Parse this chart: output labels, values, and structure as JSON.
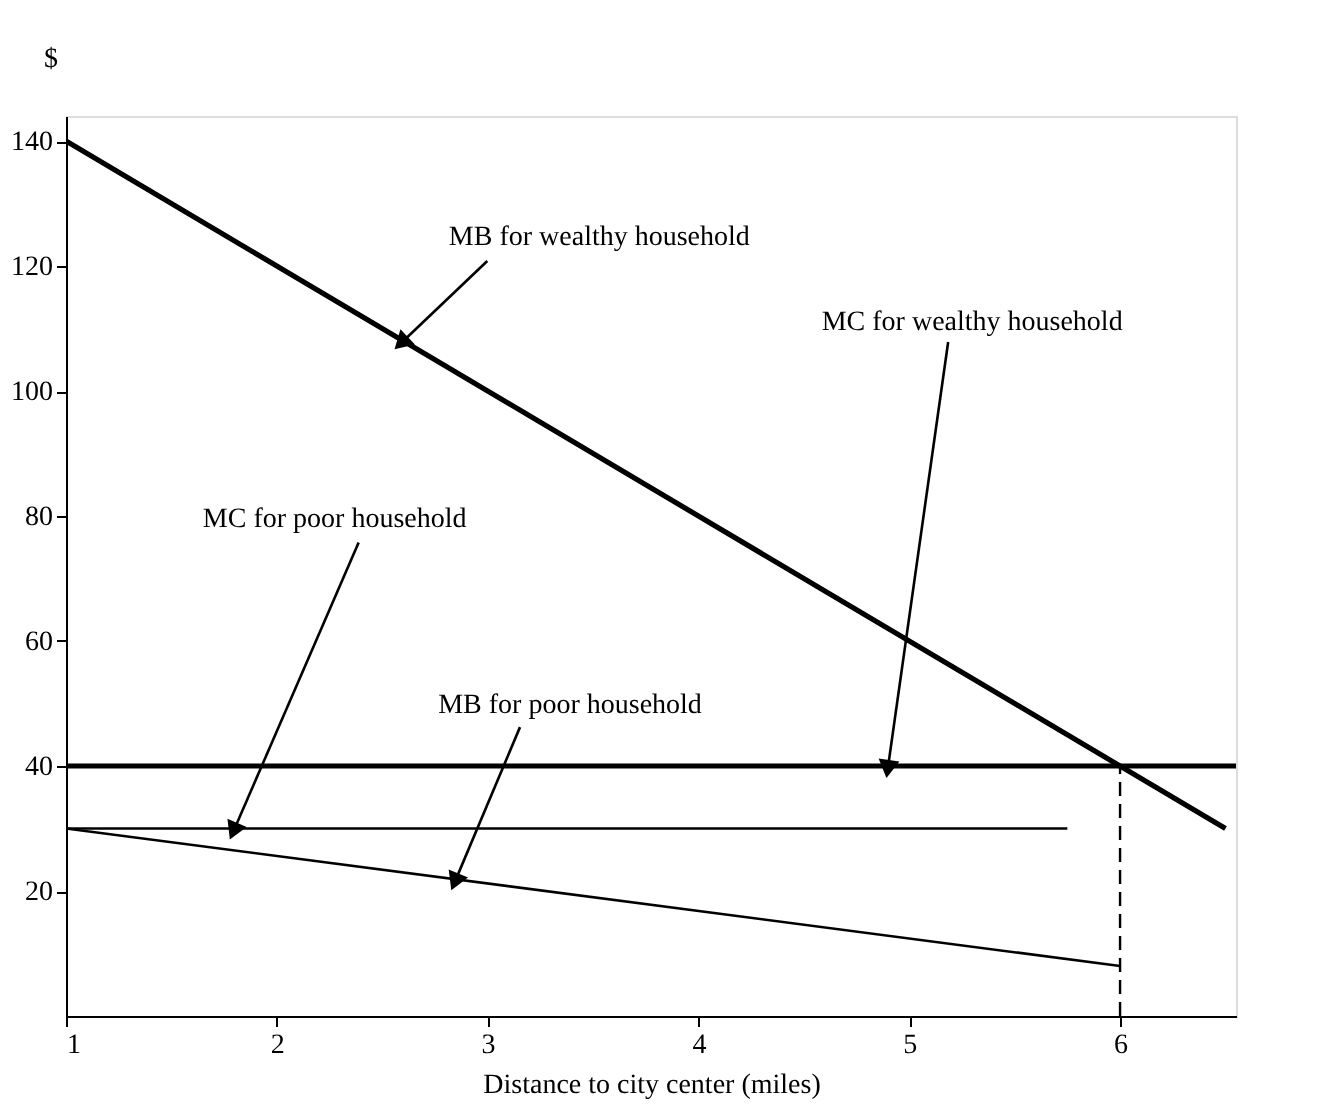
{
  "chart_data": {
    "type": "line",
    "ylabel": "$",
    "xlabel": "Distance to city center (miles)",
    "xlim": [
      1,
      6.55
    ],
    "ylim": [
      0,
      144
    ],
    "xticks": [
      1,
      2,
      3,
      4,
      5,
      6
    ],
    "yticks": [
      20,
      40,
      60,
      80,
      100,
      120,
      140
    ],
    "grid": false,
    "marker": "none",
    "series": [
      {
        "color": "#000000",
        "x": [
          1,
          6.5
        ],
        "values": [
          140,
          30
        ],
        "line_style": "solid"
      },
      {
        "color": "#000000",
        "x": [
          1,
          6.55
        ],
        "values": [
          40,
          40
        ],
        "line_style": "solid"
      },
      {
        "color": "#000000",
        "x": [
          1,
          5.75
        ],
        "values": [
          30,
          30
        ],
        "line_style": "solid"
      },
      {
        "color": "#000000",
        "x": [
          1,
          6
        ],
        "values": [
          30,
          8
        ],
        "line_style": "solid"
      },
      {
        "color": "#000000",
        "x": [
          6,
          6
        ],
        "values": [
          0,
          40
        ],
        "line_style": "dashed"
      }
    ],
    "annotations": [
      {
        "text": "MB for wealthy household",
        "x": 2.6,
        "y": 108
      },
      {
        "text": "MC for wealthy household",
        "x": 4.9,
        "y": 40
      },
      {
        "text": "MC for poor household",
        "x": 1.8,
        "y": 30
      },
      {
        "text": "MB for poor household",
        "x": 2.85,
        "y": 21.9
      }
    ]
  }
}
